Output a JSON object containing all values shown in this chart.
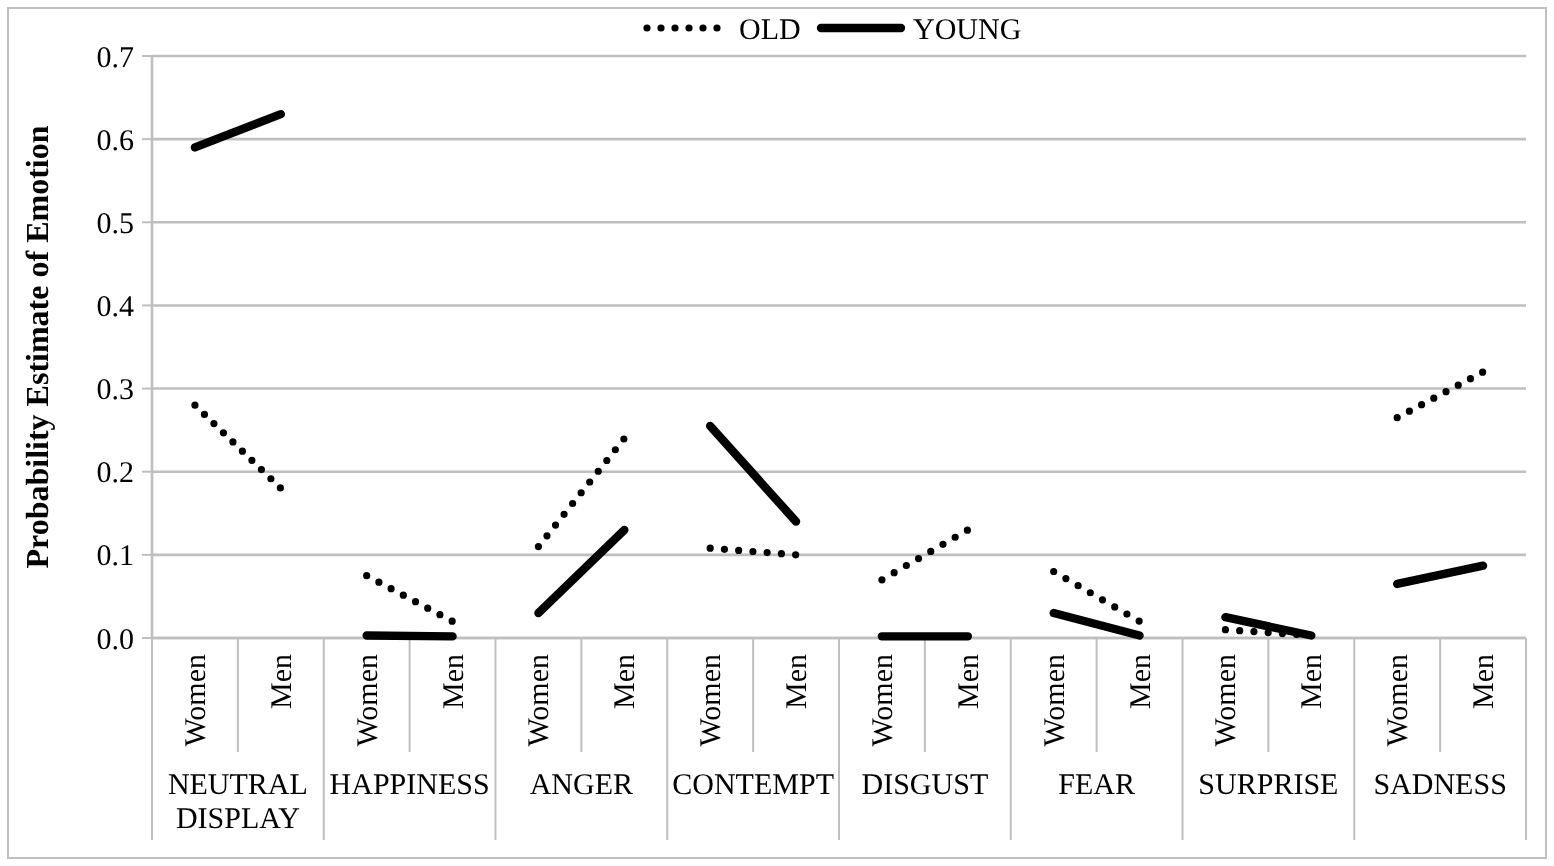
{
  "chart_data": {
    "type": "line",
    "ylabel": "Probability Estimate of Emotion",
    "categories": [
      "Women",
      "Men",
      "Women",
      "Men",
      "Women",
      "Men",
      "Women",
      "Men",
      "Women",
      "Men",
      "Women",
      "Men",
      "Women",
      "Men",
      "Women",
      "Men"
    ],
    "annotations": [
      "NEUTRAL DISPLAY",
      "HAPPINESS",
      "ANGER",
      "CONTEMPT",
      "DISGUST",
      "FEAR",
      "SURPRISE",
      "SADNESS"
    ],
    "series": [
      {
        "name": "OLD",
        "color": "#000000",
        "line_style": "dotted",
        "values": [
          0.28,
          0.18,
          null,
          null,
          null,
          null,
          null,
          null,
          null,
          null,
          null,
          null,
          null,
          null,
          null,
          null
        ]
      },
      {
        "name": "YOUNG",
        "color": "#000000",
        "line_style": "solid",
        "values": [
          0.59,
          0.63,
          null,
          null,
          null,
          null,
          null,
          null,
          null,
          null,
          null,
          null,
          null,
          null,
          null,
          null
        ]
      },
      {
        "color": "#000000",
        "line_style": "dotted",
        "values": [
          null,
          null,
          0.075,
          0.02,
          null,
          null,
          null,
          null,
          null,
          null,
          null,
          null,
          null,
          null,
          null,
          null
        ]
      },
      {
        "color": "#000000",
        "line_style": "solid",
        "values": [
          null,
          null,
          0.003,
          0.002,
          null,
          null,
          null,
          null,
          null,
          null,
          null,
          null,
          null,
          null,
          null,
          null
        ]
      },
      {
        "color": "#000000",
        "line_style": "dotted",
        "values": [
          null,
          null,
          null,
          null,
          0.11,
          0.24,
          null,
          null,
          null,
          null,
          null,
          null,
          null,
          null,
          null,
          null
        ]
      },
      {
        "color": "#000000",
        "line_style": "solid",
        "values": [
          null,
          null,
          null,
          null,
          0.03,
          0.13,
          null,
          null,
          null,
          null,
          null,
          null,
          null,
          null,
          null,
          null
        ]
      },
      {
        "color": "#000000",
        "line_style": "dotted",
        "values": [
          null,
          null,
          null,
          null,
          null,
          null,
          0.108,
          0.1,
          null,
          null,
          null,
          null,
          null,
          null,
          null,
          null
        ]
      },
      {
        "color": "#000000",
        "line_style": "solid",
        "values": [
          null,
          null,
          null,
          null,
          null,
          null,
          0.255,
          0.14,
          null,
          null,
          null,
          null,
          null,
          null,
          null,
          null
        ]
      },
      {
        "color": "#000000",
        "line_style": "dotted",
        "values": [
          null,
          null,
          null,
          null,
          null,
          null,
          null,
          null,
          0.07,
          0.13,
          null,
          null,
          null,
          null,
          null,
          null
        ]
      },
      {
        "color": "#000000",
        "line_style": "solid",
        "values": [
          null,
          null,
          null,
          null,
          null,
          null,
          null,
          null,
          0.002,
          0.002,
          null,
          null,
          null,
          null,
          null,
          null
        ]
      },
      {
        "color": "#000000",
        "line_style": "dotted",
        "values": [
          null,
          null,
          null,
          null,
          null,
          null,
          null,
          null,
          null,
          null,
          0.08,
          0.02,
          null,
          null,
          null,
          null
        ]
      },
      {
        "color": "#000000",
        "line_style": "solid",
        "values": [
          null,
          null,
          null,
          null,
          null,
          null,
          null,
          null,
          null,
          null,
          0.03,
          0.003,
          null,
          null,
          null,
          null
        ]
      },
      {
        "color": "#000000",
        "line_style": "dotted",
        "values": [
          null,
          null,
          null,
          null,
          null,
          null,
          null,
          null,
          null,
          null,
          null,
          null,
          0.01,
          0.003,
          null,
          null
        ]
      },
      {
        "color": "#000000",
        "line_style": "solid",
        "values": [
          null,
          null,
          null,
          null,
          null,
          null,
          null,
          null,
          null,
          null,
          null,
          null,
          0.025,
          0.003,
          null,
          null
        ]
      },
      {
        "color": "#000000",
        "line_style": "dotted",
        "values": [
          null,
          null,
          null,
          null,
          null,
          null,
          null,
          null,
          null,
          null,
          null,
          null,
          null,
          null,
          0.265,
          0.32
        ]
      },
      {
        "color": "#000000",
        "line_style": "solid",
        "values": [
          null,
          null,
          null,
          null,
          null,
          null,
          null,
          null,
          null,
          null,
          null,
          null,
          null,
          null,
          0.065,
          0.087
        ]
      }
    ],
    "ylim": [
      0,
      0.7
    ],
    "yticks": [
      {
        "value": 0,
        "label": "0.0"
      },
      {
        "value": 0.1,
        "label": "0.1"
      },
      {
        "value": 0.2,
        "label": "0.2"
      },
      {
        "value": 0.3,
        "label": "0.3"
      },
      {
        "value": 0.4,
        "label": "0.4"
      },
      {
        "value": 0.5,
        "label": "0.5"
      },
      {
        "value": 0.6,
        "label": "0.6"
      },
      {
        "value": 0.7,
        "label": "0.7"
      }
    ],
    "grid": "y",
    "legend": "top",
    "marker": "none"
  }
}
